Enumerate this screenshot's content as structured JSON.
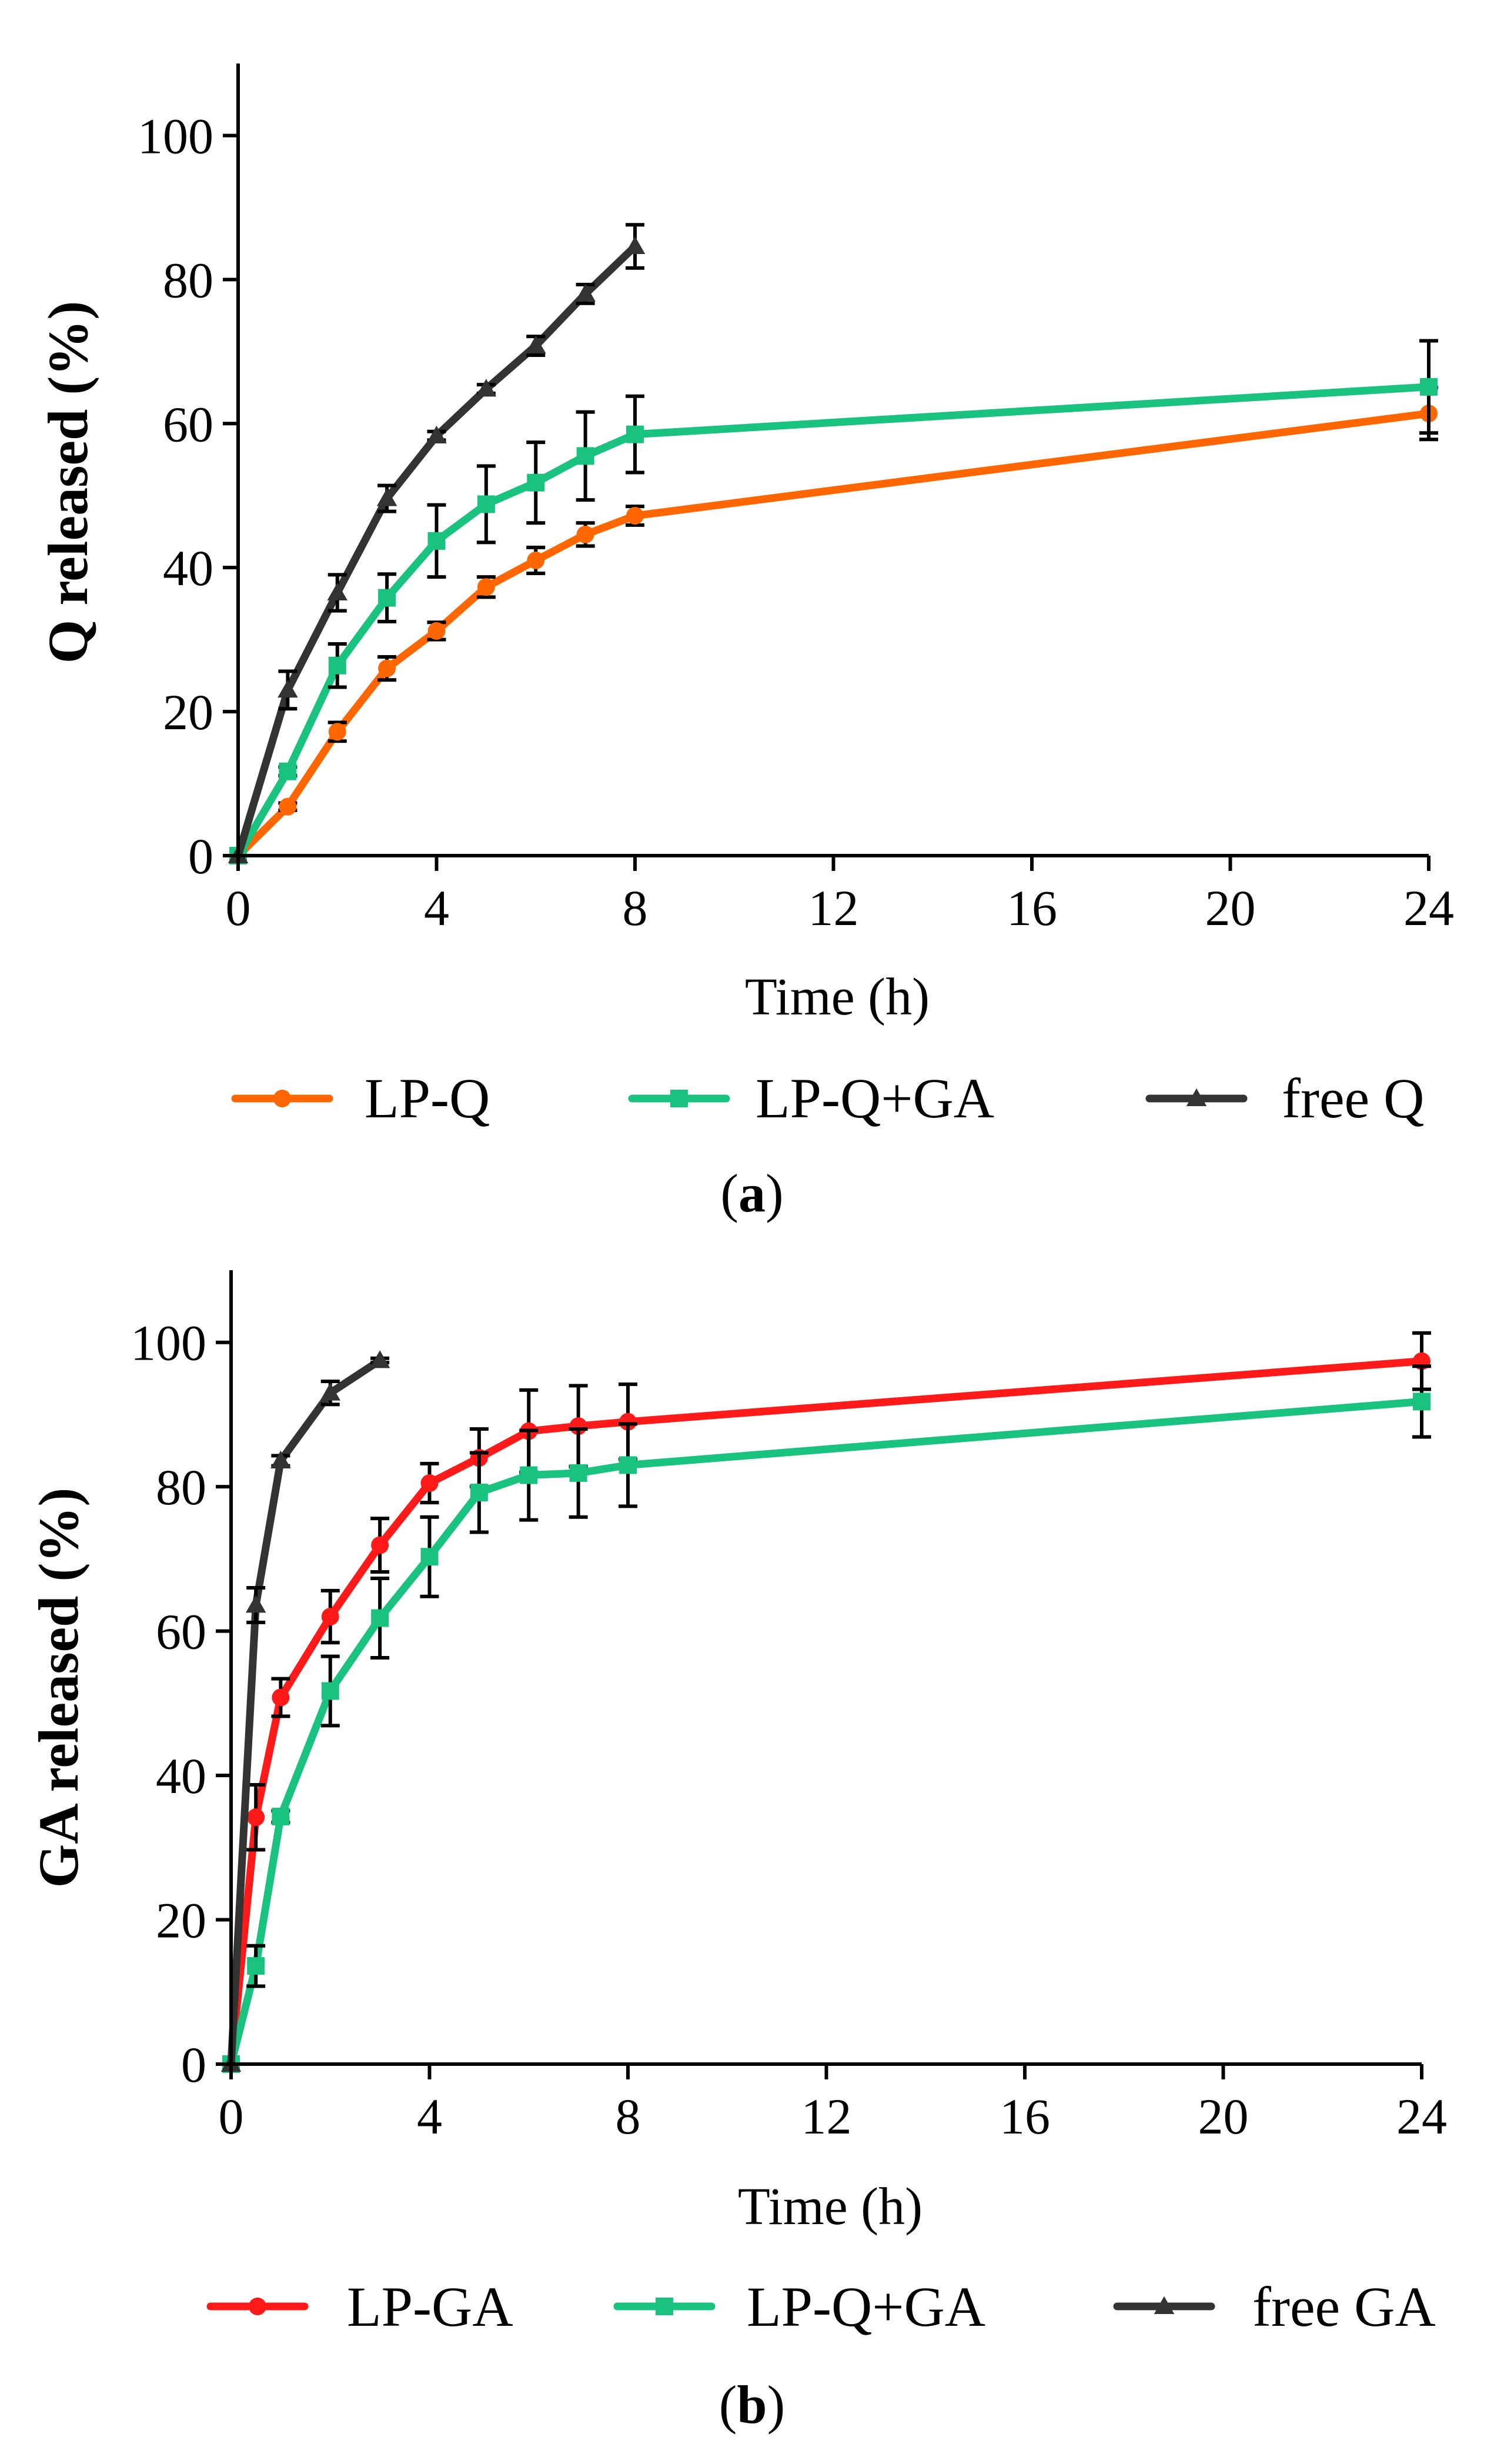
{
  "chart_data": [
    {
      "type": "line",
      "panel_label_open": "(",
      "panel_label_letter": "a",
      "panel_label_close": ")",
      "xlabel": "Time (h)",
      "ylabel": "Q released (%)",
      "xlim": [
        0,
        24
      ],
      "ylim": [
        0,
        110
      ],
      "x_ticks": [
        "0",
        "4",
        "8",
        "12",
        "16",
        "20",
        "24"
      ],
      "x_tick_values": [
        0,
        4,
        8,
        12,
        16,
        20,
        24
      ],
      "y_ticks": [
        "0",
        "20",
        "40",
        "60",
        "80",
        "100"
      ],
      "y_tick_values": [
        0,
        20,
        40,
        60,
        80,
        100
      ],
      "grid": false,
      "legend_position": "bottom",
      "series": [
        {
          "name": "LP-Q",
          "color": "#FF6600",
          "marker": "circle",
          "x": [
            0,
            1,
            2,
            3,
            4,
            5,
            6,
            7,
            8,
            24
          ],
          "y": [
            0,
            6.8,
            17.2,
            26.0,
            31.2,
            37.3,
            41.0,
            44.6,
            47.2,
            61.4
          ],
          "err": [
            0,
            0.5,
            1.3,
            1.6,
            1.2,
            1.4,
            1.8,
            1.6,
            1.3,
            3.6
          ]
        },
        {
          "name": "LP-Q+GA",
          "color": "#19C27E",
          "marker": "square",
          "x": [
            0,
            1,
            2,
            3,
            4,
            5,
            6,
            7,
            8,
            24
          ],
          "y": [
            0,
            11.7,
            26.4,
            35.8,
            43.7,
            48.8,
            51.8,
            55.5,
            58.5,
            65.1
          ],
          "err": [
            0,
            0.6,
            3.0,
            3.3,
            5.0,
            5.3,
            5.6,
            6.1,
            5.3,
            6.4
          ]
        },
        {
          "name": "free Q",
          "color": "#333333",
          "marker": "triangle",
          "x": [
            0,
            1,
            2,
            3,
            4,
            5,
            6,
            7,
            8
          ],
          "y": [
            0,
            23.0,
            36.5,
            49.6,
            58.3,
            64.8,
            70.8,
            78.0,
            84.6
          ],
          "err": [
            0,
            2.6,
            2.5,
            1.8,
            0.6,
            0.6,
            1.3,
            1.3,
            3.0
          ]
        }
      ]
    },
    {
      "type": "line",
      "panel_label_open": "(",
      "panel_label_letter": "b",
      "panel_label_close": ")",
      "xlabel": "Time (h)",
      "ylabel": "GA released (%)",
      "xlim": [
        0,
        24
      ],
      "ylim": [
        0,
        110
      ],
      "x_ticks": [
        "0",
        "4",
        "8",
        "12",
        "16",
        "20",
        "24"
      ],
      "x_tick_values": [
        0,
        4,
        8,
        12,
        16,
        20,
        24
      ],
      "y_ticks": [
        "0",
        "20",
        "40",
        "60",
        "80",
        "100"
      ],
      "y_tick_values": [
        0,
        20,
        40,
        60,
        80,
        100
      ],
      "grid": false,
      "legend_position": "bottom",
      "series": [
        {
          "name": "LP-GA",
          "color": "#FF1A1A",
          "marker": "circle",
          "x": [
            0,
            0.5,
            1,
            2,
            3,
            4,
            5,
            6,
            7,
            8,
            24
          ],
          "y": [
            0,
            34.2,
            50.8,
            62.0,
            71.9,
            80.5,
            84.0,
            87.7,
            88.4,
            89.0,
            97.4
          ],
          "err": [
            0,
            4.5,
            2.6,
            3.6,
            3.7,
            2.7,
            4.0,
            5.7,
            5.6,
            5.2,
            3.9
          ]
        },
        {
          "name": "LP-Q+GA",
          "color": "#19C27E",
          "marker": "square",
          "x": [
            0,
            0.5,
            1,
            2,
            3,
            4,
            5,
            6,
            7,
            8,
            24
          ],
          "y": [
            0,
            13.6,
            34.3,
            51.7,
            61.8,
            70.3,
            79.2,
            81.6,
            81.9,
            83.0,
            91.8
          ],
          "err": [
            0,
            2.8,
            0.8,
            4.8,
            5.5,
            5.5,
            5.5,
            6.2,
            6.1,
            5.7,
            4.9
          ]
        },
        {
          "name": "free GA",
          "color": "#333333",
          "marker": "triangle",
          "x": [
            0,
            0.5,
            1,
            2,
            3
          ],
          "y": [
            0,
            63.6,
            83.6,
            93.0,
            97.5
          ],
          "err": [
            0,
            2.4,
            0.7,
            1.6,
            0.3
          ]
        }
      ]
    }
  ]
}
